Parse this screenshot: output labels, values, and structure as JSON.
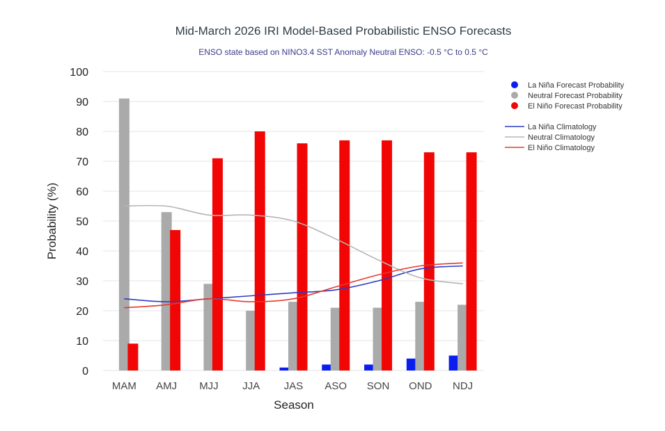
{
  "chart_data": {
    "type": "bar",
    "title": "Mid-March 2026 IRI Model-Based Probabilistic ENSO Forecasts",
    "subtitle": "ENSO state based on NINO3.4 SST Anomaly Neutral ENSO: -0.5 °C to 0.5 °C",
    "xlabel": "Season",
    "ylabel": "Probability (%)",
    "ylim": [
      0,
      100
    ],
    "yticks": [
      "0",
      "10",
      "20",
      "30",
      "40",
      "50",
      "60",
      "70",
      "80",
      "90",
      "100"
    ],
    "categories": [
      "MAM",
      "AMJ",
      "MJJ",
      "JJA",
      "JAS",
      "ASO",
      "SON",
      "OND",
      "NDJ"
    ],
    "series": [
      {
        "name": "La Niña Forecast Probability",
        "color": "#0a1ef0",
        "values": [
          0,
          0,
          0,
          0,
          1,
          2,
          2,
          4,
          5
        ]
      },
      {
        "name": "Neutral Forecast Probability",
        "color": "#aaaaaa",
        "values": [
          91,
          53,
          29,
          20,
          23,
          21,
          21,
          23,
          22
        ]
      },
      {
        "name": "El Niño Forecast Probability",
        "color": "#f20505",
        "values": [
          9,
          47,
          71,
          80,
          76,
          77,
          77,
          73,
          73
        ]
      }
    ],
    "lines": [
      {
        "name": "La Niña Climatology",
        "color": "#2b3bc4",
        "values": [
          24,
          23,
          24,
          25,
          26,
          27,
          30,
          34,
          35
        ]
      },
      {
        "name": "Neutral Climatology",
        "color": "#b5b5b5",
        "values": [
          55,
          55,
          52,
          52,
          50,
          44,
          37,
          31,
          29
        ]
      },
      {
        "name": "El Niño Climatology",
        "color": "#e33a2e",
        "values": [
          21,
          22,
          24,
          23,
          24,
          28,
          32,
          35,
          36
        ]
      }
    ],
    "legend_position": "right"
  }
}
